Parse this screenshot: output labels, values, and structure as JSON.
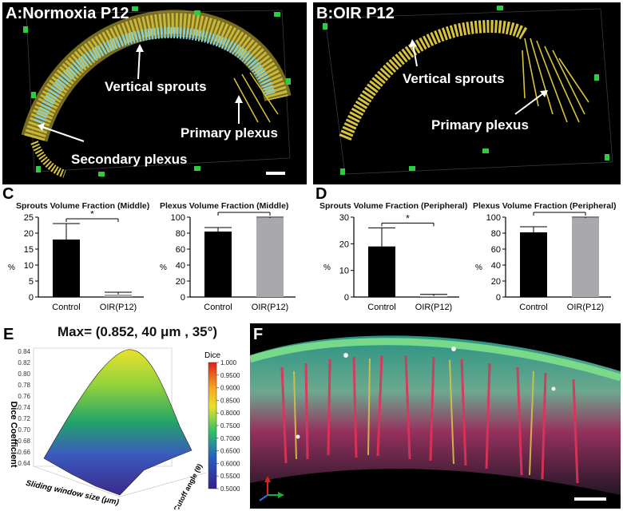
{
  "panelA": {
    "letter_title": "A:Normoxia P12",
    "labels": [
      "Vertical sprouts",
      "Primary plexus",
      "Secondary plexus"
    ]
  },
  "panelB": {
    "letter_title": "B:OIR P12",
    "labels": [
      "Vertical sprouts",
      "Primary plexus"
    ]
  },
  "letters": {
    "C": "C",
    "D": "D",
    "E": "E",
    "F": "F"
  },
  "sig_mark": "*",
  "chart_data": [
    {
      "type": "bar",
      "title": "Sprouts Volume Fraction (Middle)",
      "ylabel": "%",
      "categories": [
        "Control",
        "OIR(P12)"
      ],
      "values": [
        18.0,
        0.8
      ],
      "errors": [
        5.0,
        0.7
      ],
      "ylim": [
        0,
        25
      ],
      "yticks": [
        0,
        5,
        10,
        15,
        20,
        25
      ],
      "colors": [
        "#000000",
        "#a8a8ad"
      ]
    },
    {
      "type": "bar",
      "title": "Plexus Volume Fraction (Middle)",
      "ylabel": "%",
      "categories": [
        "Control",
        "OIR(P12)"
      ],
      "values": [
        82,
        99
      ],
      "errors": [
        5,
        1
      ],
      "ylim": [
        0,
        100
      ],
      "yticks": [
        0,
        20,
        40,
        60,
        80,
        100
      ],
      "colors": [
        "#000000",
        "#a8a8ad"
      ]
    },
    {
      "type": "bar",
      "title": "Sprouts Volume Fraction (Peripheral)",
      "ylabel": "%",
      "categories": [
        "Control",
        "OIR(P12)"
      ],
      "values": [
        19.0,
        0.4
      ],
      "errors": [
        7.0,
        0.6
      ],
      "ylim": [
        0,
        30
      ],
      "yticks": [
        0,
        10,
        20,
        30
      ],
      "colors": [
        "#000000",
        "#a8a8ad"
      ]
    },
    {
      "type": "bar",
      "title": "Plexus Volume Fraction (Peripheral)",
      "ylabel": "%",
      "categories": [
        "Control",
        "OIR(P12)"
      ],
      "values": [
        81,
        99
      ],
      "errors": [
        7,
        1
      ],
      "ylim": [
        0,
        100
      ],
      "yticks": [
        0,
        20,
        40,
        60,
        80,
        100
      ],
      "colors": [
        "#000000",
        "#a8a8ad"
      ]
    },
    {
      "type": "surface",
      "title": "Max= (0.852, 40 μm , 35°)",
      "zlabel": "Dice Coefficient",
      "xlabel": "Sliding window size (μm)",
      "ylabel": "Cutoff angle (θ)",
      "zticks": [
        "0.84",
        "0.82",
        "0.80",
        "0.78",
        "0.76",
        "0.74",
        "0.72",
        "0.70",
        "0.68",
        "0.66",
        "0.64"
      ],
      "colorbar_title": "Dice",
      "colorbar_ticks": [
        "1.000",
        "0.9500",
        "0.9000",
        "0.8500",
        "0.8000",
        "0.7500",
        "0.7000",
        "0.6500",
        "0.6000",
        "0.5500",
        "0.5000"
      ],
      "max": {
        "dice": 0.852,
        "window_um": 40,
        "angle_deg": 35
      }
    }
  ]
}
